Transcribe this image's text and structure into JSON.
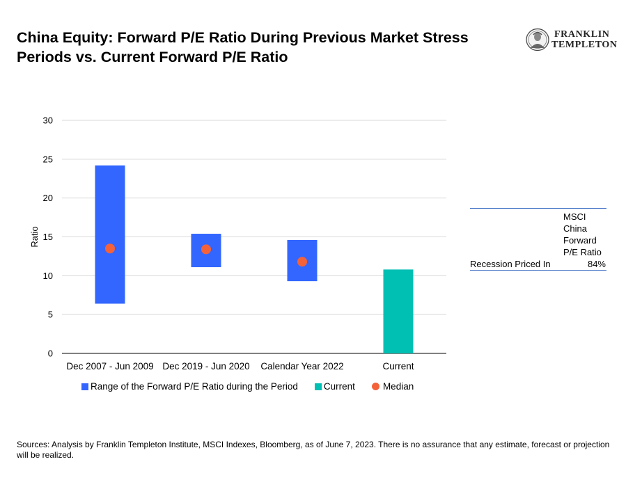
{
  "header": {
    "title": "China Equity: Forward P/E Ratio During Previous Market Stress Periods vs. Current Forward P/E Ratio",
    "logo_line1": "FRANKLIN",
    "logo_line2": "TEMPLETON"
  },
  "chart_data": {
    "type": "bar",
    "subtype": "floating-range-with-median",
    "title": "China Equity: Forward P/E Ratio During Previous Market Stress Periods vs. Current Forward P/E Ratio",
    "ylabel": "Ratio",
    "xlabel": "",
    "ylim": [
      0,
      30
    ],
    "yticks": [
      0,
      5,
      10,
      15,
      20,
      25,
      30
    ],
    "grid": true,
    "legend_position": "bottom",
    "categories": [
      "Dec 2007 - Jun 2009",
      "Dec 2019 - Jun 2020",
      "Calendar Year 2022",
      "Current"
    ],
    "series": [
      {
        "name": "Range of the Forward P/E Ratio during the Period",
        "kind": "range",
        "color": "#3366ff",
        "low": [
          6.4,
          11.1,
          9.3,
          null
        ],
        "high": [
          24.2,
          15.4,
          14.6,
          null
        ]
      },
      {
        "name": "Current",
        "kind": "bar",
        "color": "#00bfb3",
        "values": [
          null,
          null,
          null,
          10.8
        ]
      },
      {
        "name": "Median",
        "kind": "point",
        "color": "#f4623a",
        "values": [
          13.5,
          13.4,
          11.8,
          null
        ]
      }
    ]
  },
  "side_table": {
    "column_header": "MSCI China Forward P/E Ratio",
    "header_lines": [
      "MSCI",
      "China",
      "Forward",
      "P/E Ratio"
    ],
    "row_label": "Recession Priced In",
    "row_value": "84%",
    "border_color": "#4472c4"
  },
  "footer": {
    "sources": "Sources: Analysis by Franklin Templeton Institute, MSCI Indexes, Bloomberg, as of June 7, 2023. There is no assurance that any estimate, forecast or projection will be realized."
  }
}
